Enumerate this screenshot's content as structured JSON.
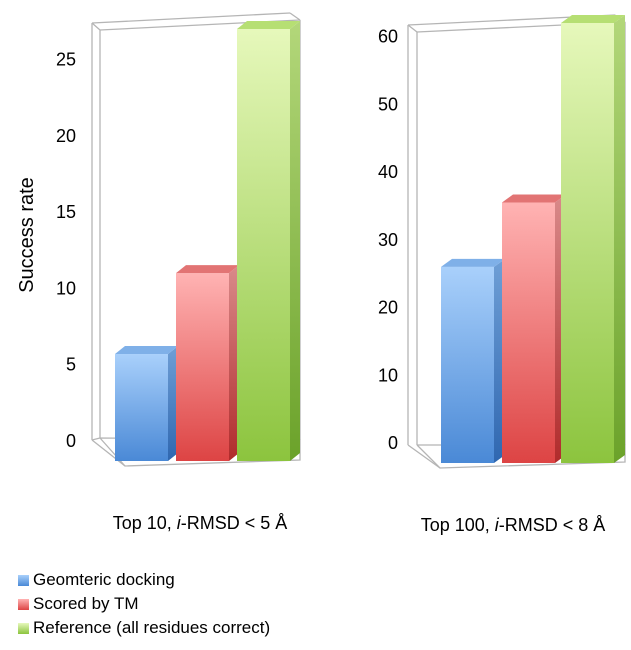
{
  "chart_data": [
    {
      "type": "bar",
      "xlabel": "Top 10, i-RMSD < 5 Å",
      "xlabel_prefix": "Top 10, ",
      "xlabel_italic": "i",
      "xlabel_suffix": "-RMSD < 5 Å",
      "ylabel": "Success rate",
      "ylim": [
        0,
        27
      ],
      "yticks": [
        0,
        5,
        10,
        15,
        20,
        25
      ],
      "categories": [
        "Geomteric docking",
        "Scored by TM",
        "Reference (all residues correct)"
      ],
      "values": [
        5.7,
        11.0,
        27.0
      ],
      "grid": false
    },
    {
      "type": "bar",
      "xlabel": "Top 100, i-RMSD < 8 Å",
      "xlabel_prefix": "Top 100, ",
      "xlabel_italic": "i",
      "xlabel_suffix": "-RMSD < 8 Å",
      "ylabel": "",
      "ylim": [
        0,
        62
      ],
      "yticks": [
        0,
        10,
        20,
        30,
        40,
        50,
        60
      ],
      "categories": [
        "Geomteric docking",
        "Scored by TM",
        "Reference (all residues correct)"
      ],
      "values": [
        26.0,
        35.5,
        62.0
      ],
      "grid": false
    }
  ],
  "legend": {
    "placement": "bottom-left",
    "items": [
      {
        "label": "Geomteric docking",
        "color": "#5b9bd5"
      },
      {
        "label": "Scored by TM",
        "color": "#e8504f"
      },
      {
        "label": "Reference (all residues correct)",
        "color": "#8fc84a"
      }
    ]
  },
  "colors": {
    "blue_light": "#a9d0fb",
    "blue_dark": "#4a89d6",
    "blue_top": "#7fb0e8",
    "red_light": "#ffb3b3",
    "red_dark": "#dd4444",
    "red_top": "#e88080",
    "green_light": "#e2f6b4",
    "green_dark": "#8cc43e",
    "green_top": "#b6df73"
  }
}
